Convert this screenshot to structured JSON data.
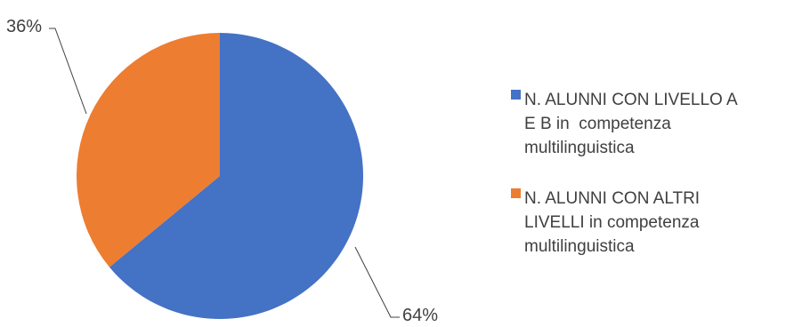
{
  "chart_data": {
    "type": "pie",
    "title": "",
    "slices": [
      {
        "legend_lines": [
          "N. ALUNNI CON LIVELLO A",
          "E B in  competenza",
          "multilinguistica"
        ],
        "value": 64,
        "label": "64%",
        "color": "#4472C4"
      },
      {
        "legend_lines": [
          "N. ALUNNI CON ALTRI",
          "LIVELLI in competenza",
          "multilinguistica"
        ],
        "value": 36,
        "label": "36%",
        "color": "#ED7D31"
      }
    ],
    "legend_position": "right",
    "data_labels": "outside-with-leader-lines",
    "start_angle_degrees": 0,
    "direction": "clockwise"
  }
}
